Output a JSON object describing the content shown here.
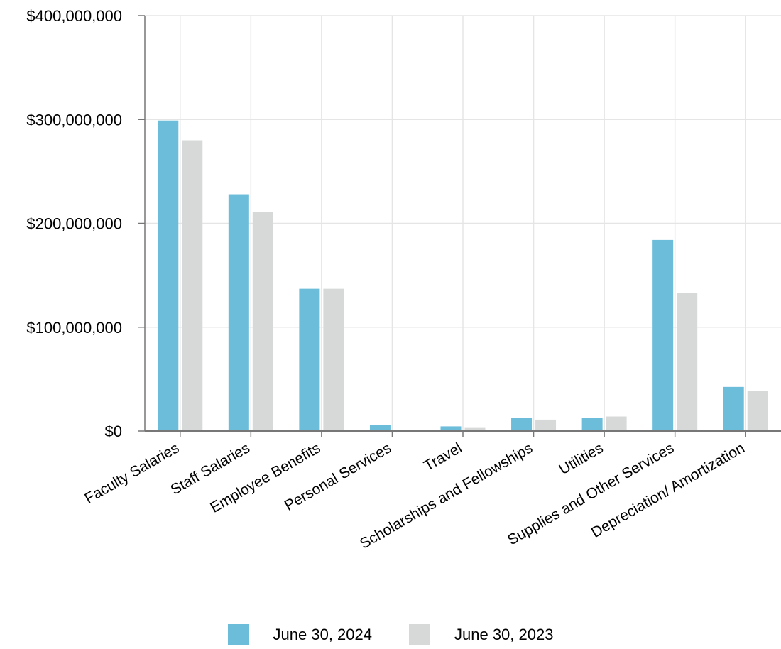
{
  "chart_data": {
    "type": "bar",
    "categories": [
      "Faculty Salaries",
      "Staff Salaries",
      "Employee Benefits",
      "Personal Services",
      "Travel",
      "Scholarships and Fellowships",
      "Utilities",
      "Supplies and Other Services",
      "Depreciation/ Amortization"
    ],
    "series": [
      {
        "name": "June 30, 2024",
        "color": "#6bbdda",
        "values": [
          299000000,
          228000000,
          137000000,
          5500000,
          4500000,
          12500000,
          12500000,
          184000000,
          42500000
        ]
      },
      {
        "name": "June 30, 2023",
        "color": "#d7d9d9",
        "values": [
          280000000,
          211000000,
          137000000,
          900000,
          3000000,
          11000000,
          14000000,
          133000000,
          38500000
        ]
      }
    ],
    "ylim": [
      0,
      400000000
    ],
    "yticks": [
      0,
      100000000,
      200000000,
      300000000,
      400000000
    ],
    "ytick_labels": [
      "$0",
      "$100,000,000",
      "$200,000,000",
      "$300,000,000",
      "$400,000,000"
    ],
    "grid": true,
    "legend_position": "bottom-center",
    "gridline_color": "#e5e5e5",
    "axis_color": "#777777"
  }
}
